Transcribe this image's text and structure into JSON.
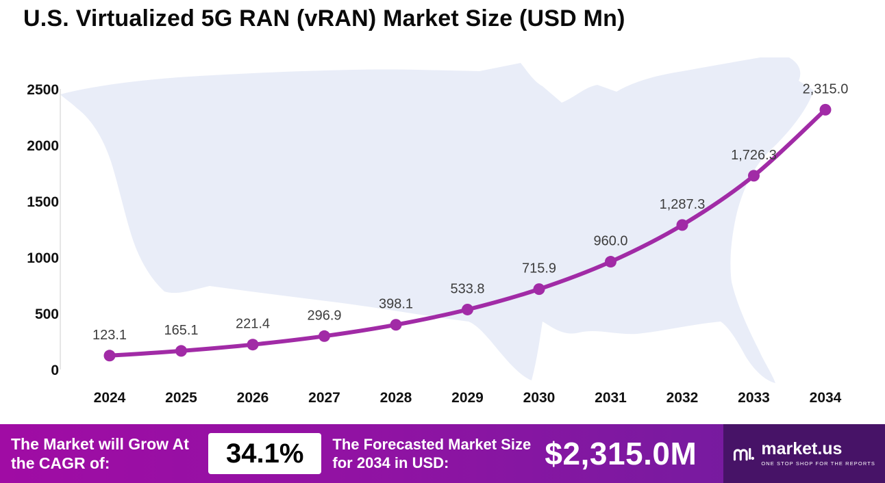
{
  "title": "U.S. Virtualized 5G RAN (vRAN) Market Size (USD Mn)",
  "chart_data": {
    "type": "line",
    "title": "U.S. Virtualized 5G RAN (vRAN) Market Size (USD Mn)",
    "categories": [
      "2024",
      "2025",
      "2026",
      "2027",
      "2028",
      "2029",
      "2030",
      "2031",
      "2032",
      "2033",
      "2034"
    ],
    "values": [
      123.1,
      165.1,
      221.4,
      296.9,
      398.1,
      533.8,
      715.9,
      960.0,
      1287.3,
      1726.3,
      2315.0
    ],
    "point_labels": [
      "123.1",
      "165.1",
      "221.4",
      "296.9",
      "398.1",
      "533.8",
      "715.9",
      "960.0",
      "1,287.3",
      "1,726.3",
      "2,315.0"
    ],
    "xlabel": "",
    "ylabel": "",
    "ylim": [
      0,
      2500
    ],
    "yticks": [
      0,
      500,
      1000,
      1500,
      2000,
      2500
    ],
    "grid": false,
    "legend": "none",
    "line_color": "#A12BA6",
    "marker_color": "#A12BA6",
    "label_color": "#3d3d3d"
  },
  "colors": {
    "accent": "#A12BA6",
    "map_fill": "#E9EDF8",
    "footer_gradient_start": "#A00CA4",
    "footer_gradient_end": "#6E1E9B",
    "brand_background": "#471367"
  },
  "footer": {
    "cagr_label": "The Market will Grow At the CAGR of:",
    "cagr_value": "34.1%",
    "forecast_label": "The Forecasted Market Size for 2034 in USD:",
    "forecast_value": "$2,315.0M",
    "brand": {
      "name": "market.us",
      "tagline": "ONE STOP SHOP FOR THE REPORTS"
    }
  }
}
